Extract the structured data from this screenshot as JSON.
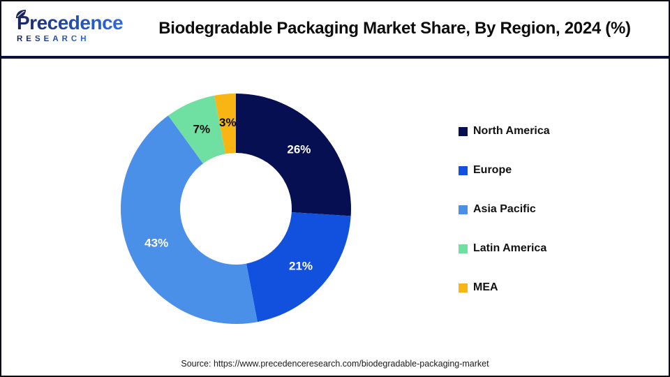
{
  "header": {
    "logo_brand": "Precedence",
    "logo_sub": "RESEARCH",
    "title": "Biodegradable Packaging Market Share, By Region, 2024 (%)"
  },
  "chart_data": {
    "type": "pie",
    "subtype": "donut",
    "title": "Biodegradable Packaging Market Share, By Region, 2024 (%)",
    "categories": [
      "North America",
      "Europe",
      "Asia Pacific",
      "Latin America",
      "MEA"
    ],
    "values": [
      26,
      21,
      43,
      7,
      3
    ],
    "unit": "%",
    "colors": [
      "#050f52",
      "#1151dd",
      "#4a90e8",
      "#70dfa2",
      "#f8b513"
    ],
    "slice_label_colors": [
      "#ffffff",
      "#ffffff",
      "#ffffff",
      "#0a0a0a",
      "#0a0a0a"
    ],
    "start_angle_deg": 0,
    "direction": "clockwise",
    "donut_hole_ratio": 0.485,
    "legend_position": "right",
    "data_labels": [
      "26%",
      "21%",
      "43%",
      "7%",
      "3%"
    ]
  },
  "footer": {
    "source": "Source: https://www.precedenceresearch.com/biodegradable-packaging-market"
  },
  "theme": {
    "divider_color": "#0d1038",
    "border_color": "#0b0b14",
    "logo_navy": "#1b2460",
    "logo_blue": "#2e6be0"
  }
}
